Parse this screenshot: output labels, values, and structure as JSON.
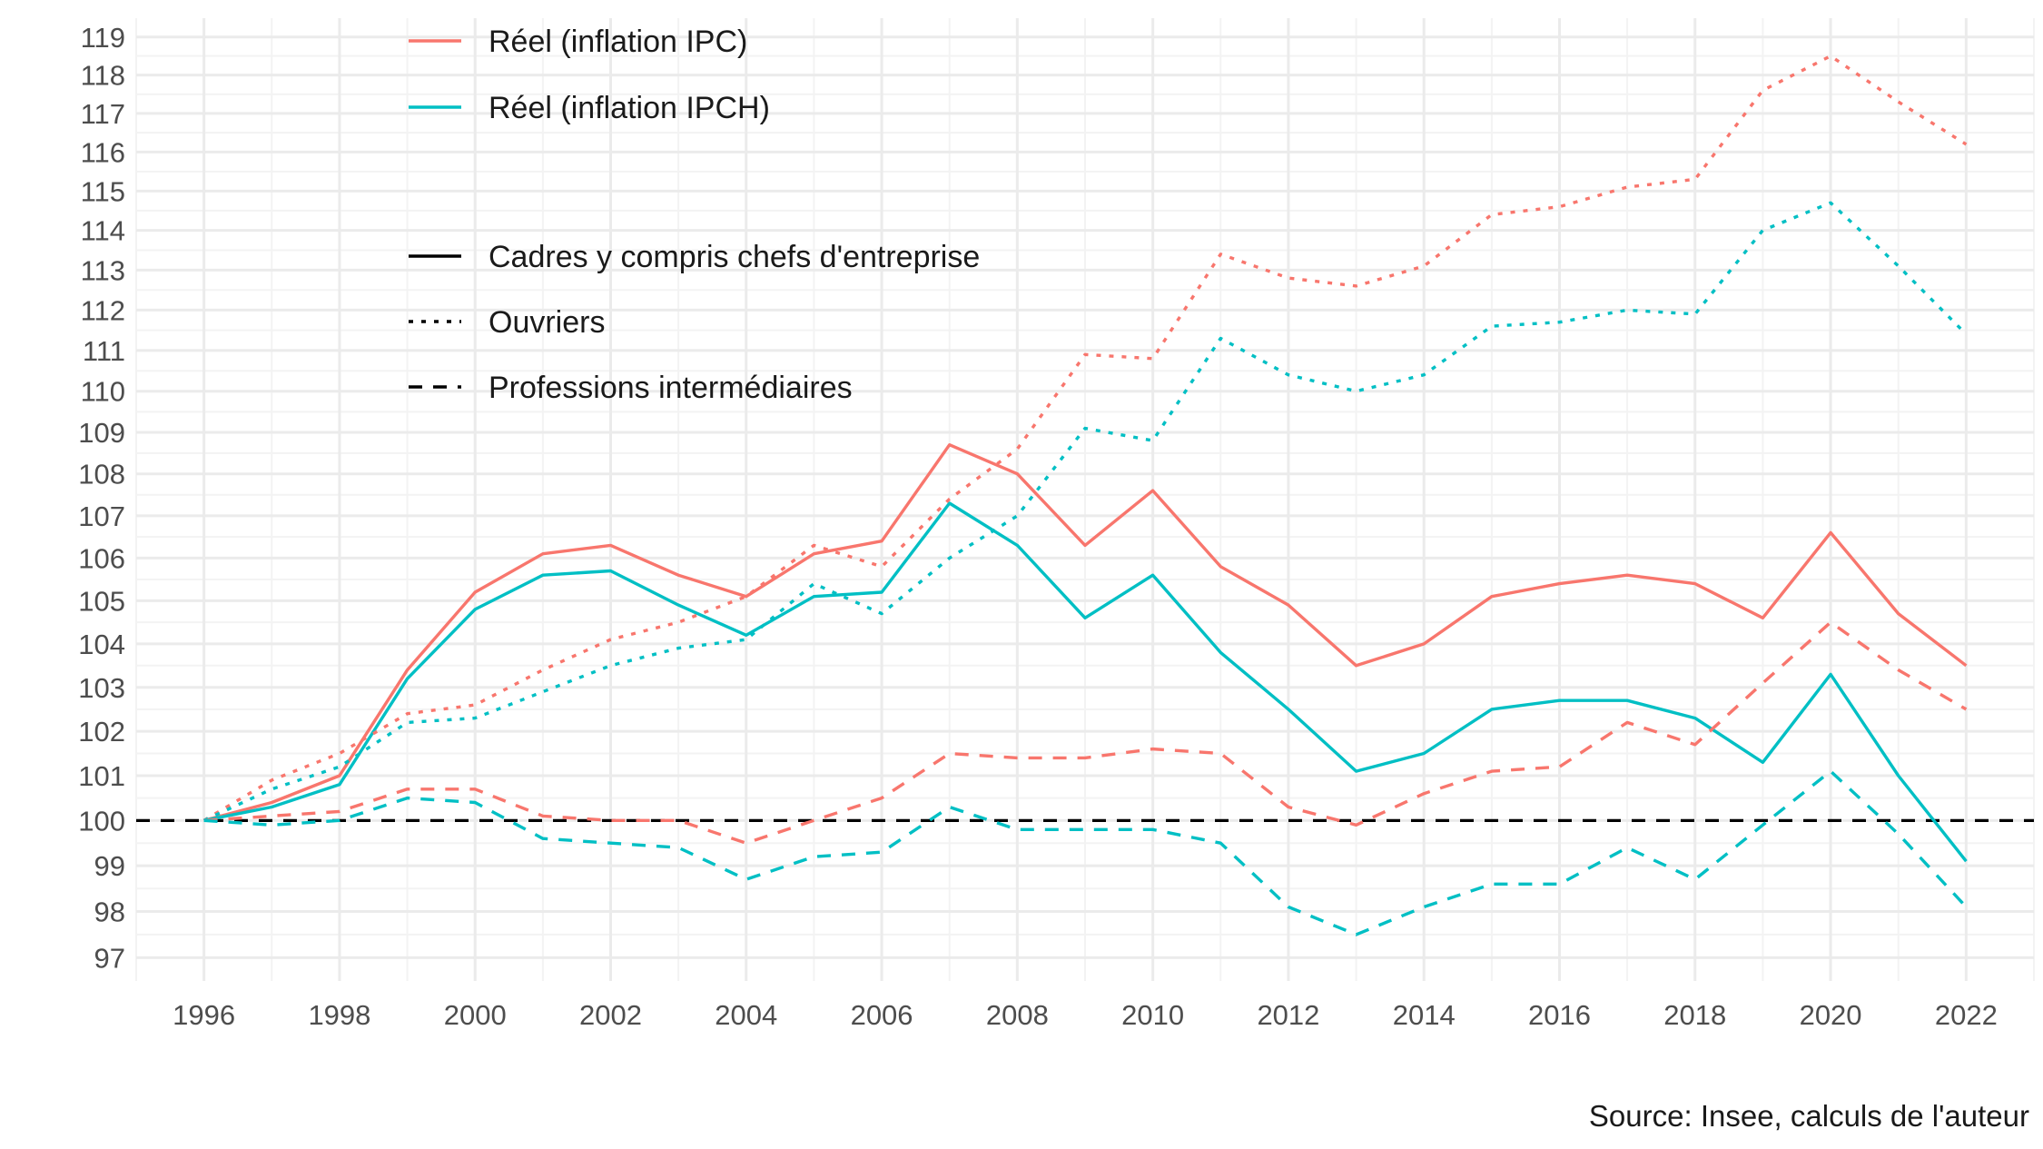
{
  "chart_data": {
    "type": "line",
    "title": "",
    "xlabel": "",
    "ylabel": "",
    "caption": "Source: Insee, calculs de l'auteur",
    "x": [
      1996,
      1997,
      1998,
      1999,
      2000,
      2001,
      2002,
      2003,
      2004,
      2005,
      2006,
      2007,
      2008,
      2009,
      2010,
      2011,
      2012,
      2013,
      2014,
      2015,
      2016,
      2017,
      2018,
      2019,
      2020,
      2021,
      2022
    ],
    "xlim": [
      1995,
      2023
    ],
    "ylim": [
      96.5,
      119.5
    ],
    "x_ticks": [
      "1996",
      "1998",
      "2000",
      "2002",
      "2004",
      "2006",
      "2008",
      "2010",
      "2012",
      "2014",
      "2016",
      "2018",
      "2020",
      "2022"
    ],
    "y_ticks": [
      "97",
      "98",
      "99",
      "100",
      "101",
      "102",
      "103",
      "104",
      "105",
      "106",
      "107",
      "108",
      "109",
      "110",
      "111",
      "112",
      "113",
      "114",
      "115",
      "116",
      "117",
      "118",
      "119"
    ],
    "y_scale": "log",
    "grid": true,
    "reference_line": {
      "y": 100,
      "style": "dashed",
      "color": "#000000"
    },
    "legend": {
      "position": "top-left",
      "color_entries": [
        {
          "label": "Réel (inflation IPC)",
          "color": "#F8766D"
        },
        {
          "label": "Réel (inflation IPCH)",
          "color": "#00BFC4"
        }
      ],
      "linetype_entries": [
        {
          "label": "Cadres y compris chefs d'entreprise",
          "style": "solid"
        },
        {
          "label": "Ouvriers",
          "style": "dotted"
        },
        {
          "label": "Professions intermédiaires",
          "style": "dashed"
        }
      ]
    },
    "series": [
      {
        "deflator": "Réel (inflation IPC)",
        "group": "Cadres y compris chefs d'entreprise",
        "color": "#F8766D",
        "style": "solid",
        "values": [
          100.0,
          100.4,
          101.0,
          103.4,
          105.2,
          106.1,
          106.3,
          105.6,
          105.1,
          106.1,
          106.4,
          108.7,
          108.0,
          106.3,
          107.6,
          105.8,
          104.9,
          103.5,
          104.0,
          105.1,
          105.4,
          105.6,
          105.4,
          104.6,
          106.6,
          104.7,
          103.5
        ]
      },
      {
        "deflator": "Réel (inflation IPCH)",
        "group": "Cadres y compris chefs d'entreprise",
        "color": "#00BFC4",
        "style": "solid",
        "values": [
          100.0,
          100.3,
          100.8,
          103.2,
          104.8,
          105.6,
          105.7,
          104.9,
          104.2,
          105.1,
          105.2,
          107.3,
          106.3,
          104.6,
          105.6,
          103.8,
          102.5,
          101.1,
          101.5,
          102.5,
          102.7,
          102.7,
          102.3,
          101.3,
          103.3,
          101.0,
          99.1
        ]
      },
      {
        "deflator": "Réel (inflation IPC)",
        "group": "Ouvriers",
        "color": "#F8766D",
        "style": "dotted",
        "values": [
          100.0,
          100.9,
          101.5,
          102.4,
          102.6,
          103.4,
          104.1,
          104.5,
          105.1,
          106.3,
          105.8,
          107.4,
          108.6,
          110.9,
          110.8,
          113.4,
          112.8,
          112.6,
          113.1,
          114.4,
          114.6,
          115.1,
          115.3,
          117.6,
          118.5,
          117.3,
          116.2
        ]
      },
      {
        "deflator": "Réel (inflation IPCH)",
        "group": "Ouvriers",
        "color": "#00BFC4",
        "style": "dotted",
        "values": [
          100.0,
          100.7,
          101.2,
          102.2,
          102.3,
          102.9,
          103.5,
          103.9,
          104.1,
          105.4,
          104.7,
          106.0,
          107.0,
          109.1,
          108.8,
          111.3,
          110.4,
          110.0,
          110.4,
          111.6,
          111.7,
          112.0,
          111.9,
          114.0,
          114.7,
          113.1,
          111.4
        ]
      },
      {
        "deflator": "Réel (inflation IPC)",
        "group": "Professions intermédiaires",
        "color": "#F8766D",
        "style": "dashed",
        "values": [
          100.0,
          100.1,
          100.2,
          100.7,
          100.7,
          100.1,
          100.0,
          100.0,
          99.5,
          100.0,
          100.5,
          101.5,
          101.4,
          101.4,
          101.6,
          101.5,
          100.3,
          99.9,
          100.6,
          101.1,
          101.2,
          102.2,
          101.7,
          103.1,
          104.5,
          103.4,
          102.5
        ]
      },
      {
        "deflator": "Réel (inflation IPCH)",
        "group": "Professions intermédiaires",
        "color": "#00BFC4",
        "style": "dashed",
        "values": [
          100.0,
          99.9,
          100.0,
          100.5,
          100.4,
          99.6,
          99.5,
          99.4,
          98.7,
          99.2,
          99.3,
          100.3,
          99.8,
          99.8,
          99.8,
          99.5,
          98.1,
          97.5,
          98.1,
          98.6,
          98.6,
          99.4,
          98.7,
          99.9,
          101.1,
          99.7,
          98.1
        ]
      }
    ]
  }
}
